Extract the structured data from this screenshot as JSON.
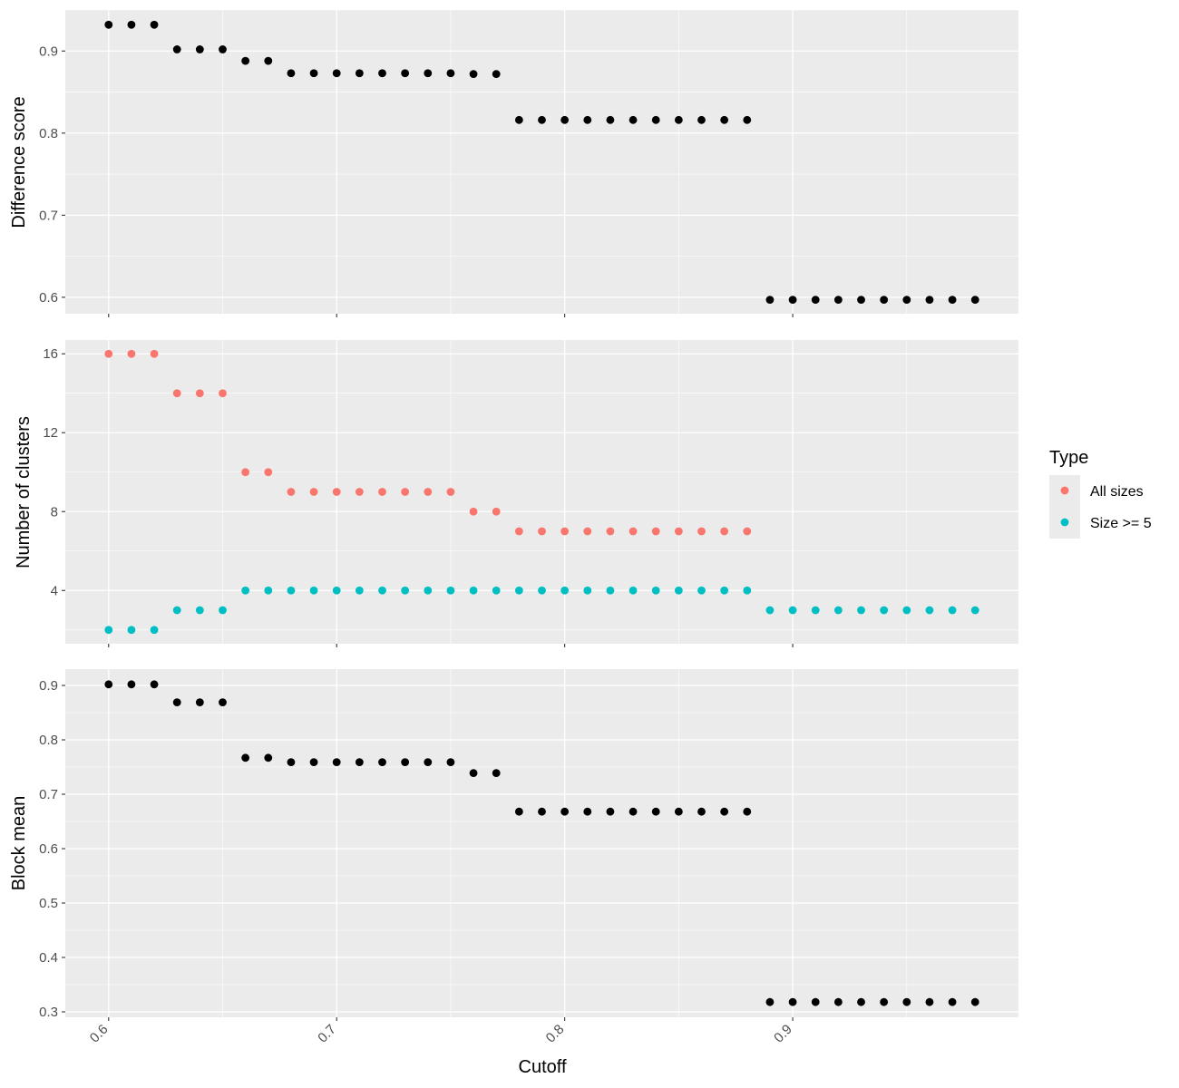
{
  "chart_data": [
    {
      "type": "scatter",
      "ylabel": "Difference score",
      "ylim": [
        0.58,
        0.95
      ],
      "yticks": [
        0.6,
        0.7,
        0.8,
        0.9
      ],
      "y_tick_labels": [
        "0.6",
        "0.7",
        "0.8",
        "0.9"
      ],
      "grid": true,
      "series": [
        {
          "color": "#000000",
          "x": [
            0.6,
            0.61,
            0.62,
            0.63,
            0.64,
            0.65,
            0.66,
            0.67,
            0.68,
            0.69,
            0.7,
            0.71,
            0.72,
            0.73,
            0.74,
            0.75,
            0.76,
            0.77,
            0.78,
            0.79,
            0.8,
            0.81,
            0.82,
            0.83,
            0.84,
            0.85,
            0.86,
            0.87,
            0.88,
            0.89,
            0.9,
            0.91,
            0.92,
            0.93,
            0.94,
            0.95,
            0.96,
            0.97,
            0.98
          ],
          "y": [
            0.932,
            0.932,
            0.932,
            0.902,
            0.902,
            0.902,
            0.888,
            0.888,
            0.873,
            0.873,
            0.873,
            0.873,
            0.873,
            0.873,
            0.873,
            0.873,
            0.872,
            0.872,
            0.816,
            0.816,
            0.816,
            0.816,
            0.816,
            0.816,
            0.816,
            0.816,
            0.816,
            0.816,
            0.816,
            0.597,
            0.597,
            0.597,
            0.597,
            0.597,
            0.597,
            0.597,
            0.597,
            0.597,
            0.597
          ]
        }
      ]
    },
    {
      "type": "scatter",
      "ylabel": "Number of clusters",
      "ylim": [
        1.3,
        16.7
      ],
      "yticks": [
        4,
        8,
        12,
        16
      ],
      "y_tick_labels": [
        "4",
        "8",
        "12",
        "16"
      ],
      "grid": true,
      "legend": {
        "title": "Type",
        "position": "right",
        "entries": [
          {
            "label": "All sizes",
            "color": "#F8766D"
          },
          {
            "label": "Size >= 5",
            "color": "#00BFC4"
          }
        ]
      },
      "series": [
        {
          "name": "All sizes",
          "color": "#F8766D",
          "x": [
            0.6,
            0.61,
            0.62,
            0.63,
            0.64,
            0.65,
            0.66,
            0.67,
            0.68,
            0.69,
            0.7,
            0.71,
            0.72,
            0.73,
            0.74,
            0.75,
            0.76,
            0.77,
            0.78,
            0.79,
            0.8,
            0.81,
            0.82,
            0.83,
            0.84,
            0.85,
            0.86,
            0.87,
            0.88
          ],
          "y": [
            16,
            16,
            16,
            14,
            14,
            14,
            10,
            10,
            9,
            9,
            9,
            9,
            9,
            9,
            9,
            9,
            8,
            8,
            7,
            7,
            7,
            7,
            7,
            7,
            7,
            7,
            7,
            7,
            7
          ]
        },
        {
          "name": "Size >= 5",
          "color": "#00BFC4",
          "x": [
            0.6,
            0.61,
            0.62,
            0.63,
            0.64,
            0.65,
            0.66,
            0.67,
            0.68,
            0.69,
            0.7,
            0.71,
            0.72,
            0.73,
            0.74,
            0.75,
            0.76,
            0.77,
            0.78,
            0.79,
            0.8,
            0.81,
            0.82,
            0.83,
            0.84,
            0.85,
            0.86,
            0.87,
            0.88,
            0.89,
            0.9,
            0.91,
            0.92,
            0.93,
            0.94,
            0.95,
            0.96,
            0.97,
            0.98
          ],
          "y": [
            2,
            2,
            2,
            3,
            3,
            3,
            4,
            4,
            4,
            4,
            4,
            4,
            4,
            4,
            4,
            4,
            4,
            4,
            4,
            4,
            4,
            4,
            4,
            4,
            4,
            4,
            4,
            4,
            4,
            3,
            3,
            3,
            3,
            3,
            3,
            3,
            3,
            3,
            3
          ]
        }
      ]
    },
    {
      "type": "scatter",
      "ylabel": "Block mean",
      "xlabel": "Cutoff",
      "xlim": [
        0.581,
        0.999
      ],
      "xticks": [
        0.6,
        0.7,
        0.8,
        0.9
      ],
      "x_tick_labels": [
        "0.6",
        "0.7",
        "0.8",
        "0.9"
      ],
      "ylim": [
        0.29,
        0.93
      ],
      "yticks": [
        0.3,
        0.4,
        0.5,
        0.6,
        0.7,
        0.8,
        0.9
      ],
      "y_tick_labels": [
        "0.3",
        "0.4",
        "0.5",
        "0.6",
        "0.7",
        "0.8",
        "0.9"
      ],
      "grid": true,
      "series": [
        {
          "color": "#000000",
          "x": [
            0.6,
            0.61,
            0.62,
            0.63,
            0.64,
            0.65,
            0.66,
            0.67,
            0.68,
            0.69,
            0.7,
            0.71,
            0.72,
            0.73,
            0.74,
            0.75,
            0.76,
            0.77,
            0.78,
            0.79,
            0.8,
            0.81,
            0.82,
            0.83,
            0.84,
            0.85,
            0.86,
            0.87,
            0.88,
            0.89,
            0.9,
            0.91,
            0.92,
            0.93,
            0.94,
            0.95,
            0.96,
            0.97,
            0.98
          ],
          "y": [
            0.902,
            0.902,
            0.902,
            0.869,
            0.869,
            0.869,
            0.767,
            0.767,
            0.759,
            0.759,
            0.759,
            0.759,
            0.759,
            0.759,
            0.759,
            0.759,
            0.739,
            0.739,
            0.668,
            0.668,
            0.668,
            0.668,
            0.668,
            0.668,
            0.668,
            0.668,
            0.668,
            0.668,
            0.668,
            0.318,
            0.318,
            0.318,
            0.318,
            0.318,
            0.318,
            0.318,
            0.318,
            0.318,
            0.318
          ]
        }
      ]
    }
  ]
}
